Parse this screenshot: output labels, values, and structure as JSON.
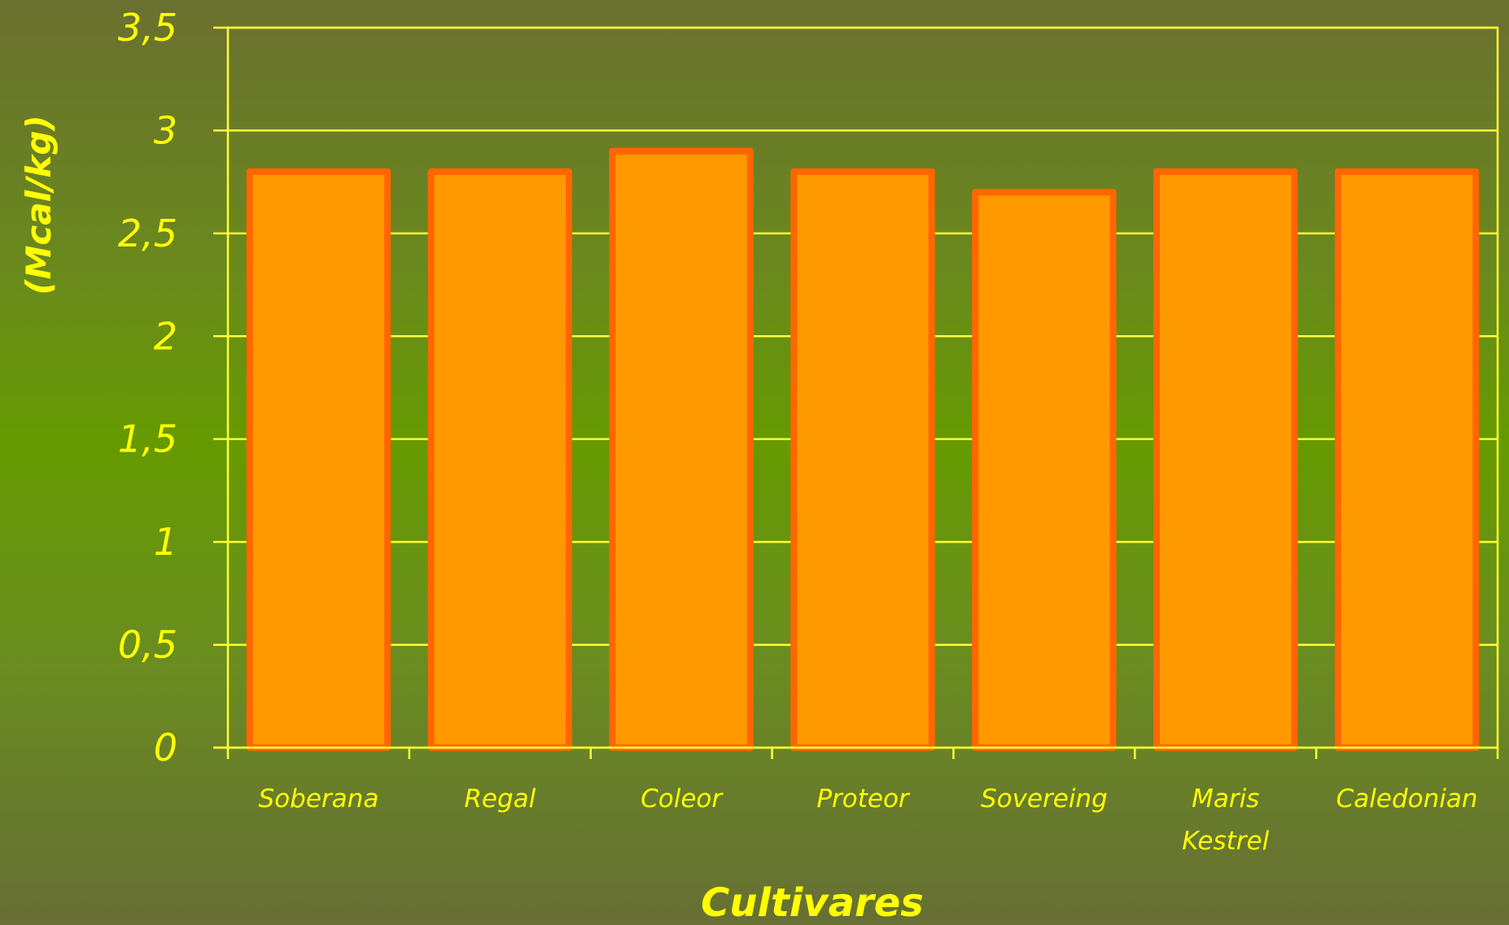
{
  "chart_data": {
    "type": "bar",
    "categories": [
      "Soberana",
      "Regal",
      "Coleor",
      "Proteor",
      "Sovereing",
      "Maris Kestrel",
      "Caledonian"
    ],
    "values": [
      2.8,
      2.8,
      2.9,
      2.8,
      2.7,
      2.8,
      2.8
    ],
    "title": "",
    "xlabel": "Cultivares",
    "ylabel": "(Mcal/kg)",
    "ylim": [
      0,
      3.5
    ],
    "yticks": [
      "0",
      "0,5",
      "1",
      "1,5",
      "2",
      "2,5",
      "3",
      "3,5"
    ],
    "grid": true,
    "legend": "none",
    "colors": {
      "bar_fill": "#ff9900",
      "bar_stroke": "#ff6600",
      "axis_text": "#ffff00",
      "grid_line": "#ffff33"
    }
  }
}
